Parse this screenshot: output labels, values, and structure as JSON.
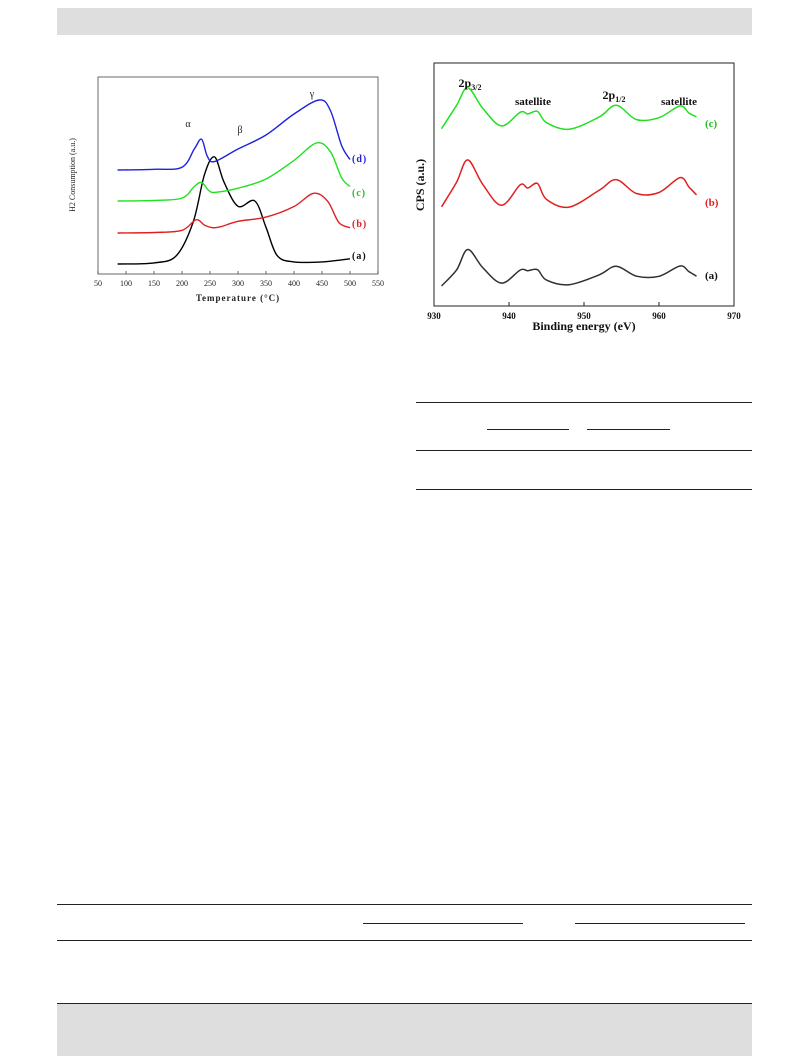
{
  "chart_data": [
    {
      "type": "line",
      "title": "",
      "xlabel": "Temperature (°C)",
      "ylabel": "H2 Consumption (a.u.)",
      "xlim": [
        50,
        550
      ],
      "xticks": [
        50,
        100,
        150,
        200,
        250,
        300,
        350,
        400,
        450,
        500,
        550
      ],
      "colors": {
        "a": "#000000",
        "b": "#e02020",
        "c": "#20e020",
        "d": "#2020e0"
      },
      "series": [
        {
          "name": "(a)",
          "x": [
            85,
            150,
            190,
            220,
            240,
            258,
            275,
            300,
            330,
            350,
            370,
            400,
            450,
            500
          ],
          "y": [
            0,
            0.01,
            0.08,
            0.4,
            0.85,
            1.02,
            0.78,
            0.55,
            0.6,
            0.35,
            0.08,
            0.02,
            0.02,
            0.05
          ]
        },
        {
          "name": "(b)",
          "x": [
            85,
            150,
            200,
            225,
            240,
            255,
            270,
            300,
            350,
            400,
            435,
            460,
            480,
            500
          ],
          "y": [
            0,
            0.01,
            0.05,
            0.25,
            0.15,
            0.1,
            0.12,
            0.22,
            0.3,
            0.5,
            0.75,
            0.6,
            0.2,
            0.1
          ]
        },
        {
          "name": "(c)",
          "x": [
            85,
            150,
            200,
            222,
            235,
            248,
            260,
            300,
            350,
            400,
            440,
            465,
            485,
            500
          ],
          "y": [
            0,
            0.01,
            0.05,
            0.25,
            0.32,
            0.18,
            0.15,
            0.22,
            0.38,
            0.7,
            1.0,
            0.85,
            0.4,
            0.25
          ]
        },
        {
          "name": "(d)",
          "x": [
            85,
            150,
            200,
            222,
            235,
            245,
            258,
            300,
            350,
            400,
            445,
            465,
            485,
            500
          ],
          "y": [
            0,
            0.01,
            0.04,
            0.3,
            0.44,
            0.2,
            0.12,
            0.3,
            0.5,
            0.8,
            1.0,
            0.85,
            0.35,
            0.15
          ]
        }
      ],
      "annotations": [
        "α",
        "β",
        "γ"
      ]
    },
    {
      "type": "line",
      "title": "",
      "xlabel": "Binding energy (eV)",
      "ylabel": "CPS (a.u.)",
      "xlim": [
        930,
        970
      ],
      "xticks": [
        930,
        940,
        950,
        960,
        970
      ],
      "colors": {
        "a": "#303030",
        "b": "#e02020",
        "c": "#20e020"
      },
      "series": [
        {
          "name": "(a)",
          "x": [
            931,
            933,
            934.5,
            936.5,
            939,
            941.5,
            942.5,
            943.8,
            945,
            948,
            952,
            954.3,
            957,
            960,
            962.8,
            964,
            965
          ],
          "y": [
            0.05,
            0.45,
            0.95,
            0.5,
            0.12,
            0.45,
            0.42,
            0.47,
            0.2,
            0.08,
            0.32,
            0.55,
            0.3,
            0.28,
            0.55,
            0.4,
            0.3
          ]
        },
        {
          "name": "(b)",
          "x": [
            931,
            933,
            934.5,
            936.5,
            939,
            941.5,
            942.5,
            943.8,
            945,
            948,
            952,
            954.3,
            957,
            960,
            962.8,
            964,
            965
          ],
          "y": [
            0.05,
            0.55,
            1.0,
            0.5,
            0.1,
            0.5,
            0.45,
            0.52,
            0.2,
            0.05,
            0.4,
            0.62,
            0.32,
            0.35,
            0.65,
            0.45,
            0.3
          ]
        },
        {
          "name": "(c)",
          "x": [
            931,
            933,
            934.5,
            936.5,
            939,
            941.5,
            942.5,
            943.8,
            945,
            948,
            952,
            954.3,
            957,
            960,
            962.8,
            964,
            965
          ],
          "y": [
            0.05,
            0.55,
            0.95,
            0.5,
            0.1,
            0.4,
            0.38,
            0.42,
            0.18,
            0.05,
            0.3,
            0.55,
            0.25,
            0.3,
            0.55,
            0.38,
            0.3
          ]
        }
      ],
      "annotations": [
        "2p3/2",
        "satellite",
        "2p1/2",
        "satellite"
      ]
    }
  ]
}
